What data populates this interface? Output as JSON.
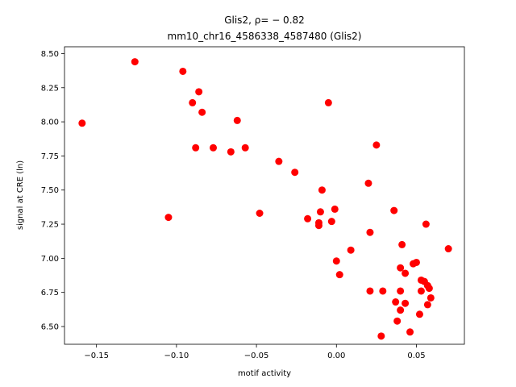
{
  "chart_data": {
    "type": "scatter",
    "title_line1": "Glis2, ρ= − 0.82",
    "title_line2": "mm10_chr16_4586338_4587480 (Glis2)",
    "xlabel": "motif activity",
    "ylabel": "signal at CRE (ln)",
    "xlim": [
      -0.17,
      0.08
    ],
    "ylim": [
      6.37,
      8.55
    ],
    "xticks": [
      -0.15,
      -0.1,
      -0.05,
      0.0,
      0.05
    ],
    "xtick_labels": [
      "−0.15",
      "−0.10",
      "−0.05",
      "0.00",
      "0.05"
    ],
    "yticks": [
      6.5,
      6.75,
      7.0,
      7.25,
      7.5,
      7.75,
      8.0,
      8.25,
      8.5
    ],
    "ytick_labels": [
      "6.50",
      "6.75",
      "7.00",
      "7.25",
      "7.50",
      "7.75",
      "8.00",
      "8.25",
      "8.50"
    ],
    "marker_color": "#ff0000",
    "grid": false,
    "points": [
      {
        "x": -0.159,
        "y": 7.99
      },
      {
        "x": -0.126,
        "y": 8.44
      },
      {
        "x": -0.105,
        "y": 7.3
      },
      {
        "x": -0.096,
        "y": 8.37
      },
      {
        "x": -0.09,
        "y": 8.14
      },
      {
        "x": -0.088,
        "y": 7.81
      },
      {
        "x": -0.086,
        "y": 8.22
      },
      {
        "x": -0.084,
        "y": 8.07
      },
      {
        "x": -0.077,
        "y": 7.81
      },
      {
        "x": -0.066,
        "y": 7.78
      },
      {
        "x": -0.062,
        "y": 8.01
      },
      {
        "x": -0.057,
        "y": 7.81
      },
      {
        "x": -0.048,
        "y": 7.33
      },
      {
        "x": -0.036,
        "y": 7.71
      },
      {
        "x": -0.026,
        "y": 7.63
      },
      {
        "x": -0.018,
        "y": 7.29
      },
      {
        "x": -0.011,
        "y": 7.26
      },
      {
        "x": -0.011,
        "y": 7.24
      },
      {
        "x": -0.01,
        "y": 7.34
      },
      {
        "x": -0.009,
        "y": 7.5
      },
      {
        "x": -0.005,
        "y": 8.14
      },
      {
        "x": -0.003,
        "y": 7.27
      },
      {
        "x": -0.001,
        "y": 7.36
      },
      {
        "x": 0.0,
        "y": 6.98
      },
      {
        "x": 0.002,
        "y": 6.88
      },
      {
        "x": 0.009,
        "y": 7.06
      },
      {
        "x": 0.02,
        "y": 7.55
      },
      {
        "x": 0.021,
        "y": 7.19
      },
      {
        "x": 0.021,
        "y": 6.76
      },
      {
        "x": 0.025,
        "y": 7.83
      },
      {
        "x": 0.028,
        "y": 6.43
      },
      {
        "x": 0.029,
        "y": 6.76
      },
      {
        "x": 0.036,
        "y": 7.35
      },
      {
        "x": 0.037,
        "y": 6.68
      },
      {
        "x": 0.038,
        "y": 6.54
      },
      {
        "x": 0.04,
        "y": 6.93
      },
      {
        "x": 0.04,
        "y": 6.76
      },
      {
        "x": 0.04,
        "y": 6.62
      },
      {
        "x": 0.041,
        "y": 7.1
      },
      {
        "x": 0.043,
        "y": 6.89
      },
      {
        "x": 0.043,
        "y": 6.67
      },
      {
        "x": 0.046,
        "y": 6.46
      },
      {
        "x": 0.048,
        "y": 6.96
      },
      {
        "x": 0.05,
        "y": 6.97
      },
      {
        "x": 0.052,
        "y": 6.59
      },
      {
        "x": 0.053,
        "y": 6.84
      },
      {
        "x": 0.053,
        "y": 6.76
      },
      {
        "x": 0.055,
        "y": 6.83
      },
      {
        "x": 0.056,
        "y": 7.25
      },
      {
        "x": 0.057,
        "y": 6.8
      },
      {
        "x": 0.057,
        "y": 6.66
      },
      {
        "x": 0.058,
        "y": 6.78
      },
      {
        "x": 0.059,
        "y": 6.71
      },
      {
        "x": 0.07,
        "y": 7.07
      }
    ]
  }
}
